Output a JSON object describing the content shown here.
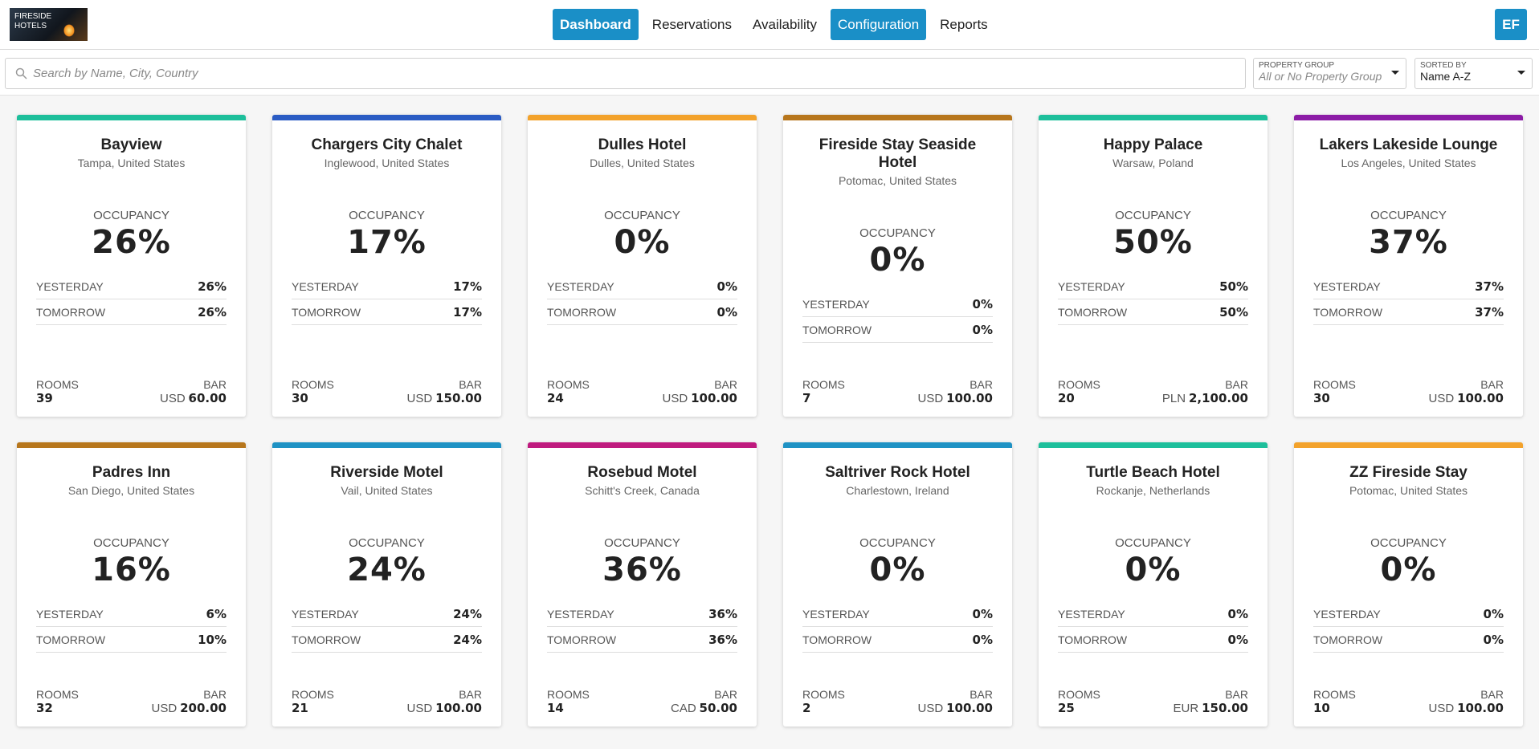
{
  "header": {
    "logo_text": [
      "FIRESIDE",
      "HOTELS"
    ],
    "nav": [
      "Dashboard",
      "Reservations",
      "Availability",
      "Configuration",
      "Reports"
    ],
    "avatar": "EF"
  },
  "filters": {
    "search_placeholder": "Search by Name, City, Country",
    "property_group": {
      "label": "PROPERTY GROUP",
      "value": "All or No Property Group"
    },
    "sorted_by": {
      "label": "SORTED BY",
      "value": "Name A-Z"
    }
  },
  "labels": {
    "occupancy": "OCCUPANCY",
    "yesterday": "YESTERDAY",
    "tomorrow": "TOMORROW",
    "rooms": "ROOMS",
    "bar": "BAR"
  },
  "cards": [
    {
      "name": "Bayview",
      "location": "Tampa, United States",
      "color": "#1dbf9b",
      "occupancy": "26%",
      "yesterday": "26%",
      "tomorrow": "26%",
      "rooms": "39",
      "currency": "USD",
      "bar": "60.00"
    },
    {
      "name": "Chargers City Chalet",
      "location": "Inglewood, United States",
      "color": "#2b5cc4",
      "occupancy": "17%",
      "yesterday": "17%",
      "tomorrow": "17%",
      "rooms": "30",
      "currency": "USD",
      "bar": "150.00"
    },
    {
      "name": "Dulles Hotel",
      "location": "Dulles, United States",
      "color": "#f3a22b",
      "occupancy": "0%",
      "yesterday": "0%",
      "tomorrow": "0%",
      "rooms": "24",
      "currency": "USD",
      "bar": "100.00"
    },
    {
      "name": "Fireside Stay Seaside Hotel",
      "location": "Potomac, United States",
      "color": "#b7761c",
      "occupancy": "0%",
      "yesterday": "0%",
      "tomorrow": "0%",
      "rooms": "7",
      "currency": "USD",
      "bar": "100.00"
    },
    {
      "name": "Happy Palace",
      "location": "Warsaw, Poland",
      "color": "#1dbf9b",
      "occupancy": "50%",
      "yesterday": "50%",
      "tomorrow": "50%",
      "rooms": "20",
      "currency": "PLN",
      "bar": "2,100.00"
    },
    {
      "name": "Lakers Lakeside Lounge",
      "location": "Los Angeles, United States",
      "color": "#8c1ca6",
      "occupancy": "37%",
      "yesterday": "37%",
      "tomorrow": "37%",
      "rooms": "30",
      "currency": "USD",
      "bar": "100.00"
    },
    {
      "name": "Padres Inn",
      "location": "San Diego, United States",
      "color": "#b7761c",
      "occupancy": "16%",
      "yesterday": "6%",
      "tomorrow": "10%",
      "rooms": "32",
      "currency": "USD",
      "bar": "200.00"
    },
    {
      "name": "Riverside Motel",
      "location": "Vail, United States",
      "color": "#1f92c4",
      "occupancy": "24%",
      "yesterday": "24%",
      "tomorrow": "24%",
      "rooms": "21",
      "currency": "USD",
      "bar": "100.00"
    },
    {
      "name": "Rosebud Motel",
      "location": "Schitt's Creek, Canada",
      "color": "#bf1a7e",
      "occupancy": "36%",
      "yesterday": "36%",
      "tomorrow": "36%",
      "rooms": "14",
      "currency": "CAD",
      "bar": "50.00"
    },
    {
      "name": "Saltriver Rock Hotel",
      "location": "Charlestown, Ireland",
      "color": "#1f92c4",
      "occupancy": "0%",
      "yesterday": "0%",
      "tomorrow": "0%",
      "rooms": "2",
      "currency": "USD",
      "bar": "100.00"
    },
    {
      "name": "Turtle Beach Hotel",
      "location": "Rockanje, Netherlands",
      "color": "#1dbf9b",
      "occupancy": "0%",
      "yesterday": "0%",
      "tomorrow": "0%",
      "rooms": "25",
      "currency": "EUR",
      "bar": "150.00"
    },
    {
      "name": "ZZ Fireside Stay",
      "location": "Potomac, United States",
      "color": "#f3a22b",
      "occupancy": "0%",
      "yesterday": "0%",
      "tomorrow": "0%",
      "rooms": "10",
      "currency": "USD",
      "bar": "100.00"
    }
  ]
}
